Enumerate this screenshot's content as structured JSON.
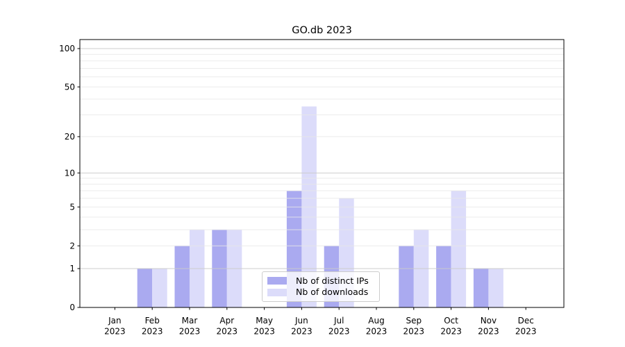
{
  "chart_data": {
    "type": "bar",
    "title": "GO.db 2023",
    "categories": [
      "Jan",
      "Feb",
      "Mar",
      "Apr",
      "May",
      "Jun",
      "Jul",
      "Aug",
      "Sep",
      "Oct",
      "Nov",
      "Dec"
    ],
    "year": "2023",
    "series": [
      {
        "name": "Nb of distinct IPs",
        "color": "#aaaaf0",
        "values": [
          0,
          1,
          2,
          3,
          0,
          7,
          2,
          0,
          2,
          2,
          1,
          0
        ]
      },
      {
        "name": "Nb of downloads",
        "color": "#dcdcfa",
        "values": [
          0,
          1,
          3,
          3,
          0,
          35,
          6,
          0,
          3,
          7,
          1,
          0
        ]
      }
    ],
    "yticks": [
      "0",
      "1",
      "2",
      "5",
      "10",
      "20",
      "50",
      "100"
    ],
    "ytick_values": [
      0,
      1,
      2,
      5,
      10,
      20,
      50,
      100
    ],
    "yscale": "log10(1+x)",
    "ylim": [
      0,
      118
    ],
    "xlabel": "",
    "ylabel": "",
    "grid": true,
    "legend_position": "inside-bottom-center",
    "colors": {
      "minor_grid": "#e8e8e8",
      "major_grid": "#c9c9c9",
      "axis": "#000000",
      "background": "#ffffff"
    }
  }
}
